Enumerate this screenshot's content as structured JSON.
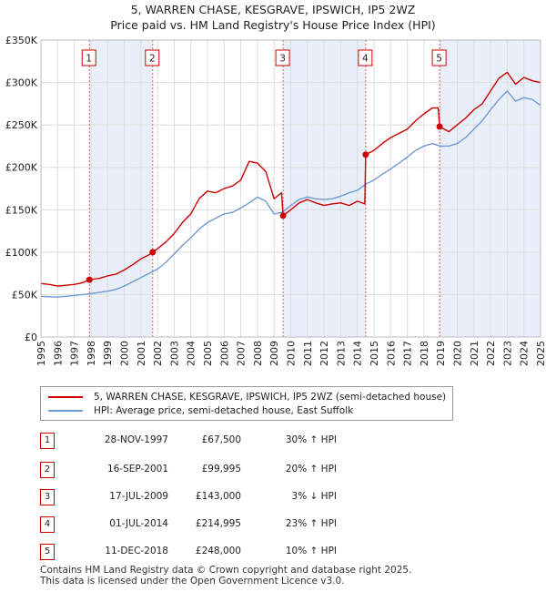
{
  "title_line1": "5, WARREN CHASE, KESGRAVE, IPSWICH, IP5 2WZ",
  "title_line2": "Price paid vs. HM Land Registry's House Price Index (HPI)",
  "legend": {
    "property": "5, WARREN CHASE, KESGRAVE, IPSWICH, IP5 2WZ (semi-detached house)",
    "hpi": "HPI: Average price, semi-detached house, East Suffolk"
  },
  "colors": {
    "property": "#cc0000",
    "hpi": "#6f9bd1",
    "shade": "#e9eff9",
    "grid": "#dddddd",
    "vline": "#e06060"
  },
  "table": [
    {
      "num": "1",
      "date": "28-NOV-1997",
      "price": "£67,500",
      "hpi": "30% ↑ HPI"
    },
    {
      "num": "2",
      "date": "16-SEP-2001",
      "price": "£99,995",
      "hpi": "20% ↑ HPI"
    },
    {
      "num": "3",
      "date": "17-JUL-2009",
      "price": "£143,000",
      "hpi": "3% ↓ HPI"
    },
    {
      "num": "4",
      "date": "01-JUL-2014",
      "price": "£214,995",
      "hpi": "23% ↑ HPI"
    },
    {
      "num": "5",
      "date": "11-DEC-2018",
      "price": "£248,000",
      "hpi": "10% ↑ HPI"
    }
  ],
  "footer_line1": "Contains HM Land Registry data © Crown copyright and database right 2025.",
  "footer_line2": "This data is licensed under the Open Government Licence v3.0.",
  "chart_data": {
    "type": "line",
    "title": "5, WARREN CHASE, KESGRAVE, IPSWICH, IP5 2WZ",
    "subtitle": "Price paid vs. HM Land Registry's House Price Index (HPI)",
    "xlim": [
      1995,
      2025
    ],
    "ylim": [
      0,
      350000
    ],
    "grid": true,
    "legend_position": "below",
    "x_ticks": [
      "1995",
      "1996",
      "1997",
      "1998",
      "1999",
      "2000",
      "2001",
      "2002",
      "2003",
      "2004",
      "2005",
      "2006",
      "2007",
      "2008",
      "2009",
      "2010",
      "2011",
      "2012",
      "2013",
      "2014",
      "2015",
      "2016",
      "2017",
      "2018",
      "2019",
      "2020",
      "2021",
      "2022",
      "2023",
      "2024",
      "2025"
    ],
    "y_ticks": [
      {
        "value": 0,
        "label": "£0"
      },
      {
        "value": 50000,
        "label": "£50K"
      },
      {
        "value": 100000,
        "label": "£100K"
      },
      {
        "value": 150000,
        "label": "£150K"
      },
      {
        "value": 200000,
        "label": "£200K"
      },
      {
        "value": 250000,
        "label": "£250K"
      },
      {
        "value": 300000,
        "label": "£300K"
      },
      {
        "value": 350000,
        "label": "£350K"
      }
    ],
    "series": [
      {
        "name": "5, WARREN CHASE, KESGRAVE, IPSWICH, IP5 2WZ (semi-detached house)",
        "x": [
          1995.0,
          1995.5,
          1996.0,
          1996.5,
          1997.0,
          1997.5,
          1997.9,
          1998.5,
          1999.0,
          1999.5,
          2000.0,
          2000.5,
          2001.0,
          2001.5,
          2001.71,
          2002.0,
          2002.5,
          2003.0,
          2003.5,
          2004.0,
          2004.5,
          2005.0,
          2005.5,
          2006.0,
          2006.5,
          2007.0,
          2007.5,
          2008.0,
          2008.5,
          2009.0,
          2009.45,
          2009.54,
          2010.0,
          2010.5,
          2011.0,
          2011.5,
          2012.0,
          2012.5,
          2013.0,
          2013.5,
          2014.0,
          2014.45,
          2014.5,
          2015.0,
          2015.5,
          2016.0,
          2016.5,
          2017.0,
          2017.5,
          2018.0,
          2018.5,
          2018.85,
          2018.94,
          2019.5,
          2020.0,
          2020.5,
          2021.0,
          2021.5,
          2022.0,
          2022.5,
          2023.0,
          2023.5,
          2024.0,
          2024.5,
          2025.0
        ],
        "y": [
          63000,
          62000,
          60000,
          61000,
          62000,
          64000,
          67500,
          69000,
          72000,
          74000,
          79000,
          85000,
          92000,
          97000,
          99995,
          104000,
          112000,
          122000,
          135000,
          145000,
          163000,
          172000,
          170000,
          175000,
          178000,
          185000,
          207000,
          205000,
          195000,
          163000,
          170000,
          143000,
          150000,
          158000,
          162000,
          158000,
          155000,
          157000,
          158000,
          155000,
          160000,
          157000,
          214995,
          220000,
          228000,
          235000,
          240000,
          245000,
          255000,
          263000,
          270000,
          270000,
          248000,
          242000,
          250000,
          258000,
          268000,
          275000,
          290000,
          305000,
          312000,
          298000,
          306000,
          302000,
          300000
        ]
      },
      {
        "name": "HPI: Average price, semi-detached house, East Suffolk",
        "x": [
          1995.0,
          1995.5,
          1996.0,
          1996.5,
          1997.0,
          1997.5,
          1998.0,
          1998.5,
          1999.0,
          1999.5,
          2000.0,
          2000.5,
          2001.0,
          2001.5,
          2002.0,
          2002.5,
          2003.0,
          2003.5,
          2004.0,
          2004.5,
          2005.0,
          2005.5,
          2006.0,
          2006.5,
          2007.0,
          2007.5,
          2008.0,
          2008.5,
          2009.0,
          2009.5,
          2010.0,
          2010.5,
          2011.0,
          2011.5,
          2012.0,
          2012.5,
          2013.0,
          2013.5,
          2014.0,
          2014.5,
          2015.0,
          2015.5,
          2016.0,
          2016.5,
          2017.0,
          2017.5,
          2018.0,
          2018.5,
          2019.0,
          2019.5,
          2020.0,
          2020.5,
          2021.0,
          2021.5,
          2022.0,
          2022.5,
          2023.0,
          2023.5,
          2024.0,
          2024.5,
          2025.0
        ],
        "y": [
          48000,
          47500,
          47000,
          48000,
          49000,
          50000,
          51000,
          52500,
          54000,
          56000,
          60000,
          65000,
          70000,
          75000,
          80000,
          88000,
          98000,
          108000,
          117000,
          127000,
          135000,
          140000,
          145000,
          147000,
          152000,
          158000,
          165000,
          160000,
          145000,
          147000,
          155000,
          162000,
          165000,
          163000,
          162000,
          163000,
          166000,
          170000,
          173000,
          180000,
          185000,
          192000,
          198000,
          205000,
          212000,
          220000,
          225000,
          228000,
          225000,
          225000,
          228000,
          235000,
          245000,
          255000,
          268000,
          280000,
          290000,
          278000,
          282000,
          280000,
          273000
        ]
      }
    ],
    "sales": [
      {
        "id": "1",
        "x": 1997.91,
        "y": 67500
      },
      {
        "id": "2",
        "x": 2001.71,
        "y": 99995
      },
      {
        "id": "3",
        "x": 2009.54,
        "y": 143000
      },
      {
        "id": "4",
        "x": 2014.5,
        "y": 214995
      },
      {
        "id": "5",
        "x": 2018.94,
        "y": 248000
      }
    ],
    "shaded_periods": [
      [
        1997.91,
        2001.71
      ],
      [
        2009.54,
        2014.5
      ],
      [
        2018.94,
        2025.0
      ]
    ]
  }
}
